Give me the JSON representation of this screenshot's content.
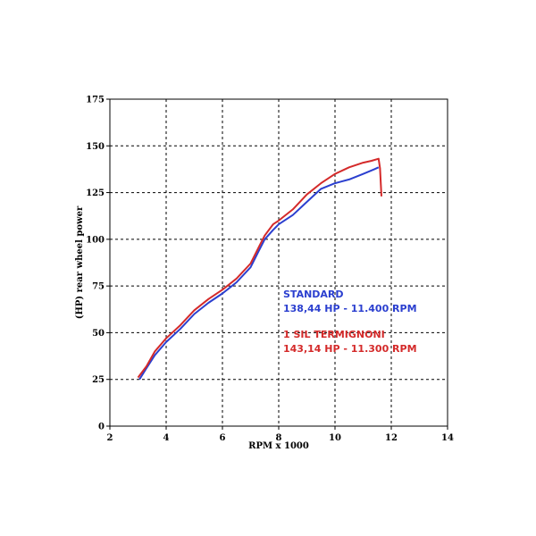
{
  "chart_data": {
    "type": "line",
    "title": "",
    "xlabel": "RPM x 1000",
    "ylabel": "(HP) rear wheel power",
    "xlim": [
      2,
      14
    ],
    "ylim": [
      0,
      175
    ],
    "xticks": [
      2,
      4,
      6,
      8,
      10,
      12,
      14
    ],
    "yticks": [
      0,
      25,
      50,
      75,
      100,
      125,
      150,
      175
    ],
    "grid": true,
    "series": [
      {
        "name": "STANDARD",
        "color": "#2b3fcf",
        "x": [
          3.05,
          3.3,
          3.6,
          4.0,
          4.5,
          5.0,
          5.5,
          6.0,
          6.5,
          7.0,
          7.3,
          7.5,
          7.8,
          8.0,
          8.5,
          9.0,
          9.5,
          10.0,
          10.5,
          11.0,
          11.4,
          11.55
        ],
        "y": [
          25,
          31,
          38,
          45,
          52,
          60,
          66,
          71,
          77,
          85,
          94,
          100,
          105,
          108,
          113,
          120,
          127,
          130,
          132,
          135,
          137.5,
          138.5
        ]
      },
      {
        "name": "1 SIL TERMIGNONI",
        "color": "#d42a2a",
        "x": [
          3.0,
          3.3,
          3.6,
          4.0,
          4.5,
          5.0,
          5.5,
          6.0,
          6.5,
          7.0,
          7.3,
          7.5,
          7.8,
          8.0,
          8.5,
          9.0,
          9.5,
          10.0,
          10.5,
          11.0,
          11.3,
          11.55,
          11.6,
          11.65
        ],
        "y": [
          26,
          32,
          40,
          47,
          54,
          62,
          68,
          73,
          79,
          87,
          96,
          102,
          108,
          110,
          116,
          124,
          130,
          135,
          138.5,
          141,
          142,
          143.1,
          138,
          123
        ]
      }
    ],
    "annotations": [
      {
        "lines": [
          "STANDARD",
          "138,44 HP - 11.400 RPM"
        ],
        "color": "#2b3fcf"
      },
      {
        "lines": [
          "1 SIL TERMIGNONI",
          "143,14 HP - 11.300 RPM"
        ],
        "color": "#d42a2a"
      }
    ]
  }
}
